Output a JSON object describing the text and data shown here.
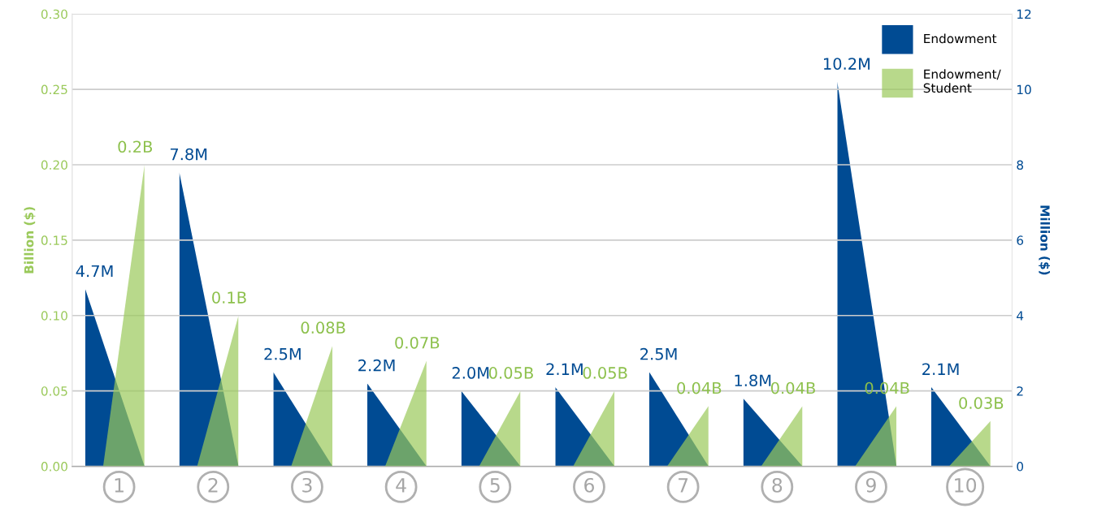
{
  "chart_data": {
    "type": "bar",
    "categories": [
      "1",
      "2",
      "3",
      "4",
      "5",
      "6",
      "7",
      "8",
      "9",
      "10"
    ],
    "ylabel": "Billion ($)",
    "y2label": "Million ($)",
    "ylim": [
      0,
      0.3
    ],
    "yticks": [
      {
        "value": 0,
        "label": "0.00"
      },
      {
        "value": 0.05,
        "label": "0.05"
      },
      {
        "value": 0.1,
        "label": "0.10"
      },
      {
        "value": 0.15,
        "label": "0.15"
      },
      {
        "value": 0.2,
        "label": "0.20"
      },
      {
        "value": 0.25,
        "label": "0.25"
      },
      {
        "value": 0.3,
        "label": "0.30"
      }
    ],
    "y2lim": [
      0,
      12
    ],
    "y2ticks": [
      0,
      2,
      4,
      6,
      8,
      10,
      12
    ],
    "grid": "y",
    "legend": "top right",
    "series": [
      {
        "name": "Endowment",
        "color": "#004b93",
        "axis": "y2",
        "values": [
          4.7,
          7.8,
          2.5,
          2.2,
          2.0,
          2.1,
          2.5,
          1.8,
          10.2,
          2.1
        ],
        "value_labels": [
          "4.7M",
          "7.8M",
          "2.5M",
          "2.2M",
          "2.0M",
          "2.1M",
          "2.5M",
          "1.8M",
          "10.2M",
          "2.1M"
        ]
      },
      {
        "name": "Endowment/\nStudent",
        "color": "#9ac95a",
        "values": [
          0.2,
          0.1,
          0.08,
          0.07,
          0.05,
          0.05,
          0.04,
          0.04,
          0.04,
          0.03
        ],
        "value_labels": [
          "0.2B",
          "0.1B",
          "0.08B",
          "0.07B",
          "0.05B",
          "0.05B",
          "0.04B",
          "0.04B",
          "0.04B",
          "0.03B"
        ]
      }
    ]
  }
}
